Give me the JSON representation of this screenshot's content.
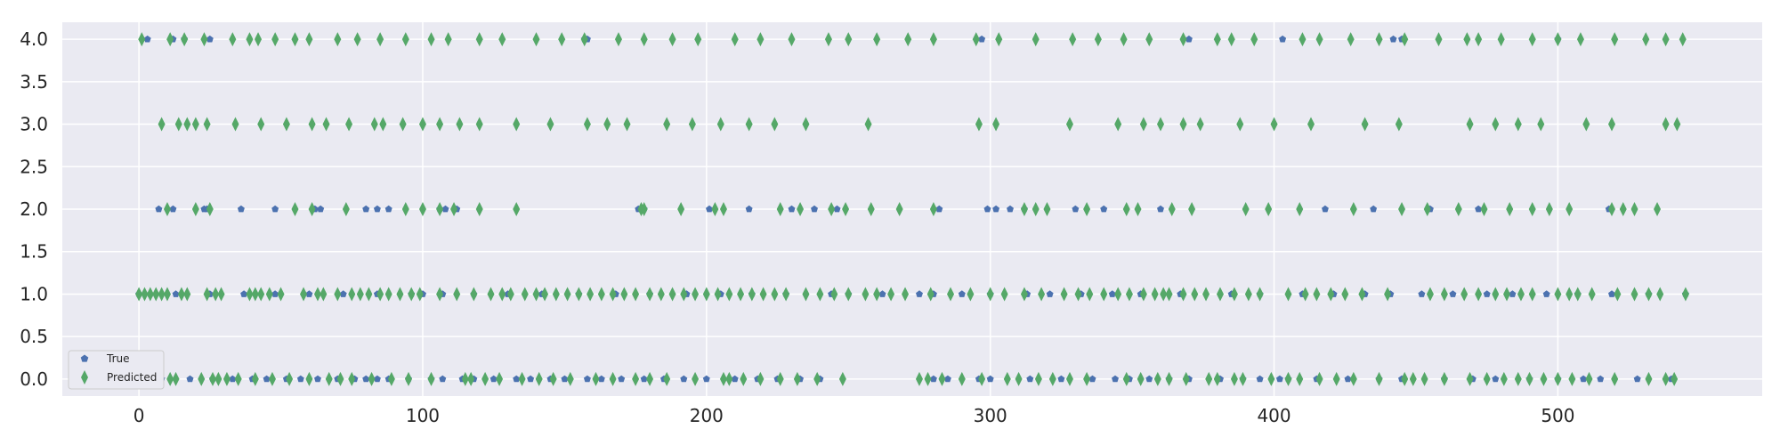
{
  "chart_data": {
    "type": "scatter",
    "title": "",
    "xlabel": "",
    "ylabel": "",
    "xlim": [
      -27,
      572
    ],
    "ylim": [
      -0.2,
      4.2
    ],
    "x_ticks": [
      0,
      100,
      200,
      300,
      400,
      500
    ],
    "y_ticks": [
      0.0,
      0.5,
      1.0,
      1.5,
      2.0,
      2.5,
      3.0,
      3.5,
      4.0
    ],
    "x_tick_labels": [
      "0",
      "100",
      "200",
      "300",
      "400",
      "500"
    ],
    "y_tick_labels": [
      "0.0",
      "0.5",
      "1.0",
      "1.5",
      "2.0",
      "2.5",
      "3.0",
      "3.5",
      "4.0"
    ],
    "grid": true,
    "legend_position": "lower-left",
    "colors": {
      "background": "#eaeaf2",
      "grid": "#ffffff",
      "true": "#4c72b0",
      "predicted": "#55a868"
    },
    "series": [
      {
        "name": "True",
        "marker": "pentagon",
        "points": [
          {
            "class": 0,
            "x": [
              8,
              18,
              26,
              33,
              40,
              45,
              52,
              57,
              63,
              70,
              76,
              80,
              84,
              88,
              95,
              103,
              107,
              114,
              118,
              125,
              133,
              138,
              145,
              150,
              158,
              163,
              170,
              178,
              185,
              192,
              200,
              210,
              218,
              225,
              233,
              240,
              280,
              285,
              296,
              300,
              314,
              325,
              336,
              344,
              349,
              356,
              363,
              370,
              381,
              389,
              395,
              402,
              405,
              415,
              426,
              437,
              445,
              460,
              470,
              478,
              490,
              500,
              509,
              515,
              528,
              540
            ]
          },
          {
            "class": 1,
            "x": [
              0,
              4,
              13,
              25,
              37,
              48,
              60,
              72,
              84,
              96,
              100,
              107,
              118,
              130,
              142,
              155,
              168,
              180,
              193,
              205,
              216,
              228,
              244,
              250,
              262,
              275,
              280,
              290,
              300,
              313,
              321,
              332,
              343,
              353,
              367,
              385,
              395,
              410,
              421,
              432,
              441,
              452,
              463,
              475,
              484,
              496,
              507,
              519,
              532,
              545
            ]
          },
          {
            "class": 2,
            "x": [
              7,
              12,
              23,
              24,
              36,
              48,
              62,
              64,
              80,
              84,
              88,
              106,
              108,
              112,
              176,
              178,
              201,
              215,
              230,
              238,
              246,
              282,
              299,
              302,
              307,
              312,
              330,
              340,
              360,
              418,
              435,
              455,
              472,
              518
            ]
          },
          {
            "class": 4,
            "x": [
              3,
              12,
              16,
              25,
              157,
              158,
              297,
              370,
              403,
              442,
              445,
              500
            ]
          }
        ]
      },
      {
        "name": "Predicted",
        "marker": "diamond",
        "points": [
          {
            "class": 0,
            "x": [
              11,
              13,
              22,
              26,
              28,
              31,
              35,
              41,
              47,
              53,
              60,
              67,
              71,
              75,
              82,
              89,
              95,
              103,
              115,
              117,
              122,
              127,
              135,
              141,
              146,
              152,
              161,
              167,
              175,
              180,
              186,
              196,
              206,
              208,
              213,
              219,
              226,
              232,
              239,
              248,
              275,
              278,
              283,
              290,
              297,
              306,
              310,
              317,
              322,
              328,
              334,
              348,
              353,
              359,
              363,
              369,
              377,
              380,
              386,
              389,
              399,
              405,
              409,
              416,
              422,
              428,
              437,
              446,
              449,
              453,
              460,
              469,
              475,
              481,
              486,
              490,
              495,
              500,
              505,
              511,
              520,
              532,
              538,
              541
            ]
          },
          {
            "class": 1,
            "x": [
              0,
              2,
              4,
              6,
              8,
              10,
              15,
              17,
              24,
              27,
              29,
              39,
              41,
              43,
              46,
              50,
              58,
              63,
              65,
              70,
              75,
              78,
              81,
              85,
              88,
              92,
              96,
              99,
              106,
              112,
              118,
              124,
              128,
              131,
              136,
              140,
              143,
              147,
              151,
              155,
              159,
              163,
              167,
              171,
              175,
              180,
              184,
              188,
              192,
              196,
              200,
              204,
              208,
              212,
              216,
              220,
              224,
              228,
              235,
              240,
              245,
              250,
              256,
              260,
              265,
              270,
              279,
              286,
              293,
              300,
              305,
              312,
              318,
              326,
              331,
              335,
              340,
              345,
              349,
              354,
              358,
              361,
              363,
              368,
              372,
              376,
              381,
              386,
              391,
              395,
              405,
              411,
              415,
              420,
              425,
              431,
              440,
              455,
              460,
              467,
              472,
              478,
              482,
              487,
              491,
              500,
              504,
              507,
              512,
              521,
              527,
              532,
              536,
              545
            ]
          },
          {
            "class": 2,
            "x": [
              10,
              20,
              25,
              55,
              61,
              73,
              94,
              100,
              106,
              111,
              120,
              133,
              177,
              178,
              191,
              203,
              206,
              226,
              233,
              244,
              249,
              258,
              268,
              280,
              312,
              316,
              320,
              334,
              348,
              352,
              364,
              371,
              390,
              398,
              409,
              428,
              445,
              454,
              465,
              474,
              483,
              491,
              497,
              504,
              519,
              523,
              527,
              535
            ]
          },
          {
            "class": 3,
            "x": [
              8,
              14,
              17,
              20,
              24,
              34,
              43,
              52,
              61,
              66,
              74,
              83,
              86,
              93,
              100,
              106,
              113,
              120,
              133,
              145,
              158,
              165,
              172,
              186,
              195,
              205,
              215,
              224,
              235,
              257,
              296,
              302,
              328,
              345,
              354,
              360,
              368,
              374,
              388,
              400,
              413,
              432,
              444,
              469,
              478,
              486,
              494,
              510,
              519,
              538,
              542
            ]
          },
          {
            "class": 4,
            "x": [
              1,
              11,
              16,
              23,
              33,
              39,
              42,
              48,
              55,
              60,
              70,
              77,
              85,
              94,
              103,
              109,
              120,
              128,
              140,
              149,
              157,
              169,
              178,
              188,
              197,
              210,
              219,
              230,
              243,
              250,
              260,
              271,
              280,
              295,
              303,
              316,
              329,
              338,
              347,
              356,
              368,
              380,
              385,
              393,
              410,
              416,
              427,
              437,
              446,
              458,
              468,
              472,
              480,
              491,
              500,
              508,
              520,
              531,
              538,
              544
            ]
          }
        ]
      }
    ]
  }
}
